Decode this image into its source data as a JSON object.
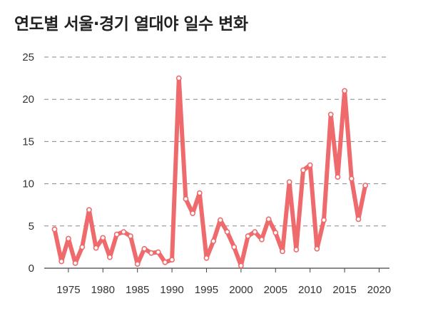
{
  "chart_data": {
    "type": "line",
    "title": "연도별 서울·경기 열대야 일수 변화",
    "xlabel": "",
    "ylabel": "",
    "xlim": [
      1971.5,
      2021.5
    ],
    "ylim": [
      0,
      25
    ],
    "grid": true,
    "legend": "none",
    "series": [
      {
        "color": "#ee6a6c",
        "points": [
          [
            1973,
            4.6
          ],
          [
            1974,
            0.8
          ],
          [
            1975,
            3.5
          ],
          [
            1976,
            0.6
          ],
          [
            1977,
            2.5
          ],
          [
            1978,
            6.9
          ],
          [
            1979,
            2.4
          ],
          [
            1980,
            3.6
          ],
          [
            1981,
            1.3
          ],
          [
            1982,
            4.0
          ],
          [
            1983,
            4.3
          ],
          [
            1984,
            3.8
          ],
          [
            1985,
            0.5
          ],
          [
            1986,
            2.3
          ],
          [
            1987,
            1.8
          ],
          [
            1988,
            1.9
          ],
          [
            1989,
            0.7
          ],
          [
            1990,
            1.0
          ],
          [
            1991,
            22.5
          ],
          [
            1992,
            8.2
          ],
          [
            1993,
            6.5
          ],
          [
            1994,
            8.9
          ],
          [
            1995,
            1.2
          ],
          [
            1996,
            3.2
          ],
          [
            1997,
            5.7
          ],
          [
            1998,
            4.3
          ],
          [
            1999,
            2.5
          ],
          [
            2000,
            0.3
          ],
          [
            2001,
            3.8
          ],
          [
            2002,
            4.3
          ],
          [
            2003,
            3.4
          ],
          [
            2004,
            5.8
          ],
          [
            2005,
            4.2
          ],
          [
            2006,
            2.0
          ],
          [
            2007,
            10.2
          ],
          [
            2008,
            2.2
          ],
          [
            2009,
            11.6
          ],
          [
            2010,
            12.2
          ],
          [
            2011,
            2.3
          ],
          [
            2012,
            5.7
          ],
          [
            2013,
            18.2
          ],
          [
            2014,
            10.8
          ],
          [
            2015,
            21.0
          ],
          [
            2016,
            10.6
          ],
          [
            2017,
            5.8
          ],
          [
            2018,
            9.8
          ]
        ]
      }
    ],
    "y_ticks": [
      0,
      5,
      10,
      15,
      20,
      25
    ],
    "x_ticks": [
      1975,
      1980,
      1985,
      1990,
      1995,
      2000,
      2005,
      2010,
      2015,
      2020
    ]
  }
}
